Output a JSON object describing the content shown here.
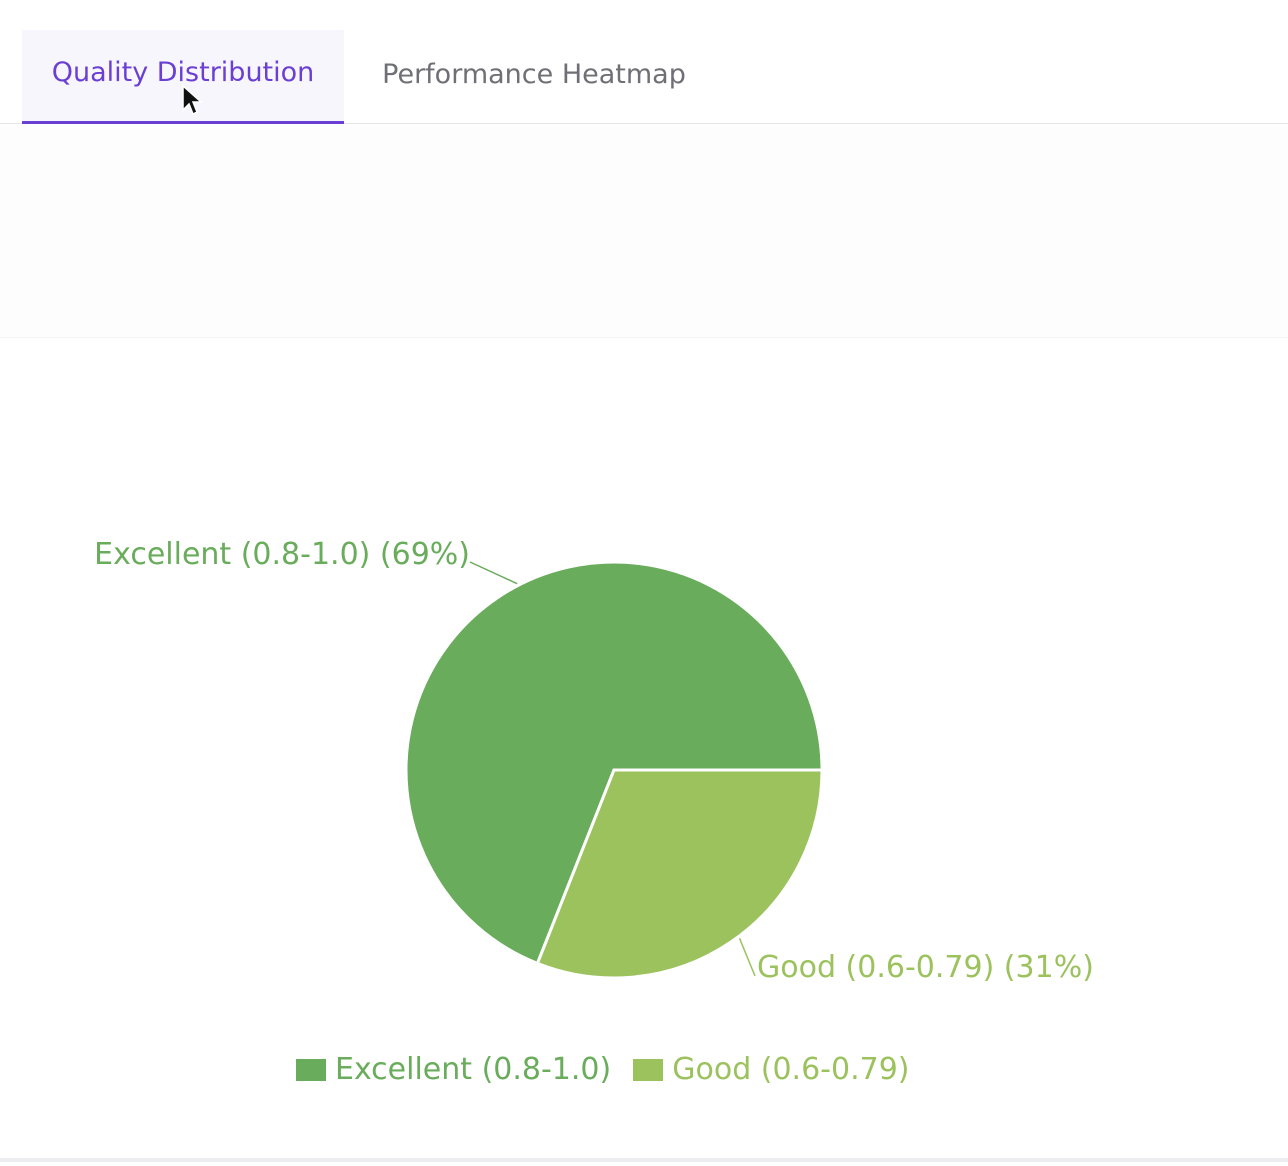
{
  "tabs": [
    {
      "label": "Quality Distribution",
      "active": true
    },
    {
      "label": "Performance Heatmap",
      "active": false
    }
  ],
  "colors": {
    "accent": "#6a3fd4",
    "excellent": "#69ac5b",
    "good": "#9cc25e"
  },
  "chart_data": {
    "type": "pie",
    "slices": [
      {
        "label": "Excellent (0.8-1.0)",
        "value": 69,
        "callout": "Excellent (0.8-1.0) (69%)",
        "color": "#69ac5b"
      },
      {
        "label": "Good (0.6-0.79)",
        "value": 31,
        "callout": "Good (0.6-0.79) (31%)",
        "color": "#9cc25e"
      }
    ],
    "legend": {
      "placement": "bottom",
      "entries": [
        "Excellent (0.8-1.0)",
        "Good (0.6-0.79)"
      ]
    }
  }
}
